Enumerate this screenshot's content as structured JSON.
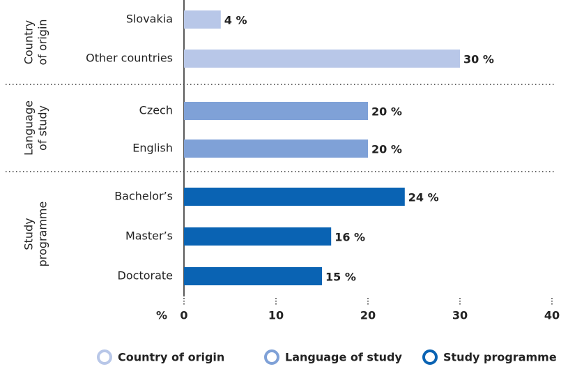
{
  "chart_data": {
    "type": "bar",
    "orientation": "horizontal",
    "x_label": "%",
    "xlim": [
      0,
      40
    ],
    "xticks": [
      0,
      10,
      20,
      30,
      40
    ],
    "series": [
      {
        "name": "Country of origin",
        "group_label": [
          "Country",
          "of origin"
        ],
        "color": "#b8c7e8",
        "categories": [
          "Slovakia",
          "Other countries"
        ],
        "values": [
          4,
          30
        ],
        "value_labels": [
          "4 %",
          "30 %"
        ]
      },
      {
        "name": "Language of study",
        "group_label": [
          "Language",
          "of study"
        ],
        "color": "#7fa1d7",
        "categories": [
          "Czech",
          "English"
        ],
        "values": [
          20,
          20
        ],
        "value_labels": [
          "20 %",
          "20 %"
        ]
      },
      {
        "name": "Study programme",
        "group_label": [
          "Study",
          "programme"
        ],
        "color": "#0a63b3",
        "categories": [
          "Bachelor’s",
          "Master’s",
          "Doctorate"
        ],
        "values": [
          24,
          16,
          15
        ],
        "value_labels": [
          "24 %",
          "16 %",
          "15 %"
        ]
      }
    ]
  }
}
